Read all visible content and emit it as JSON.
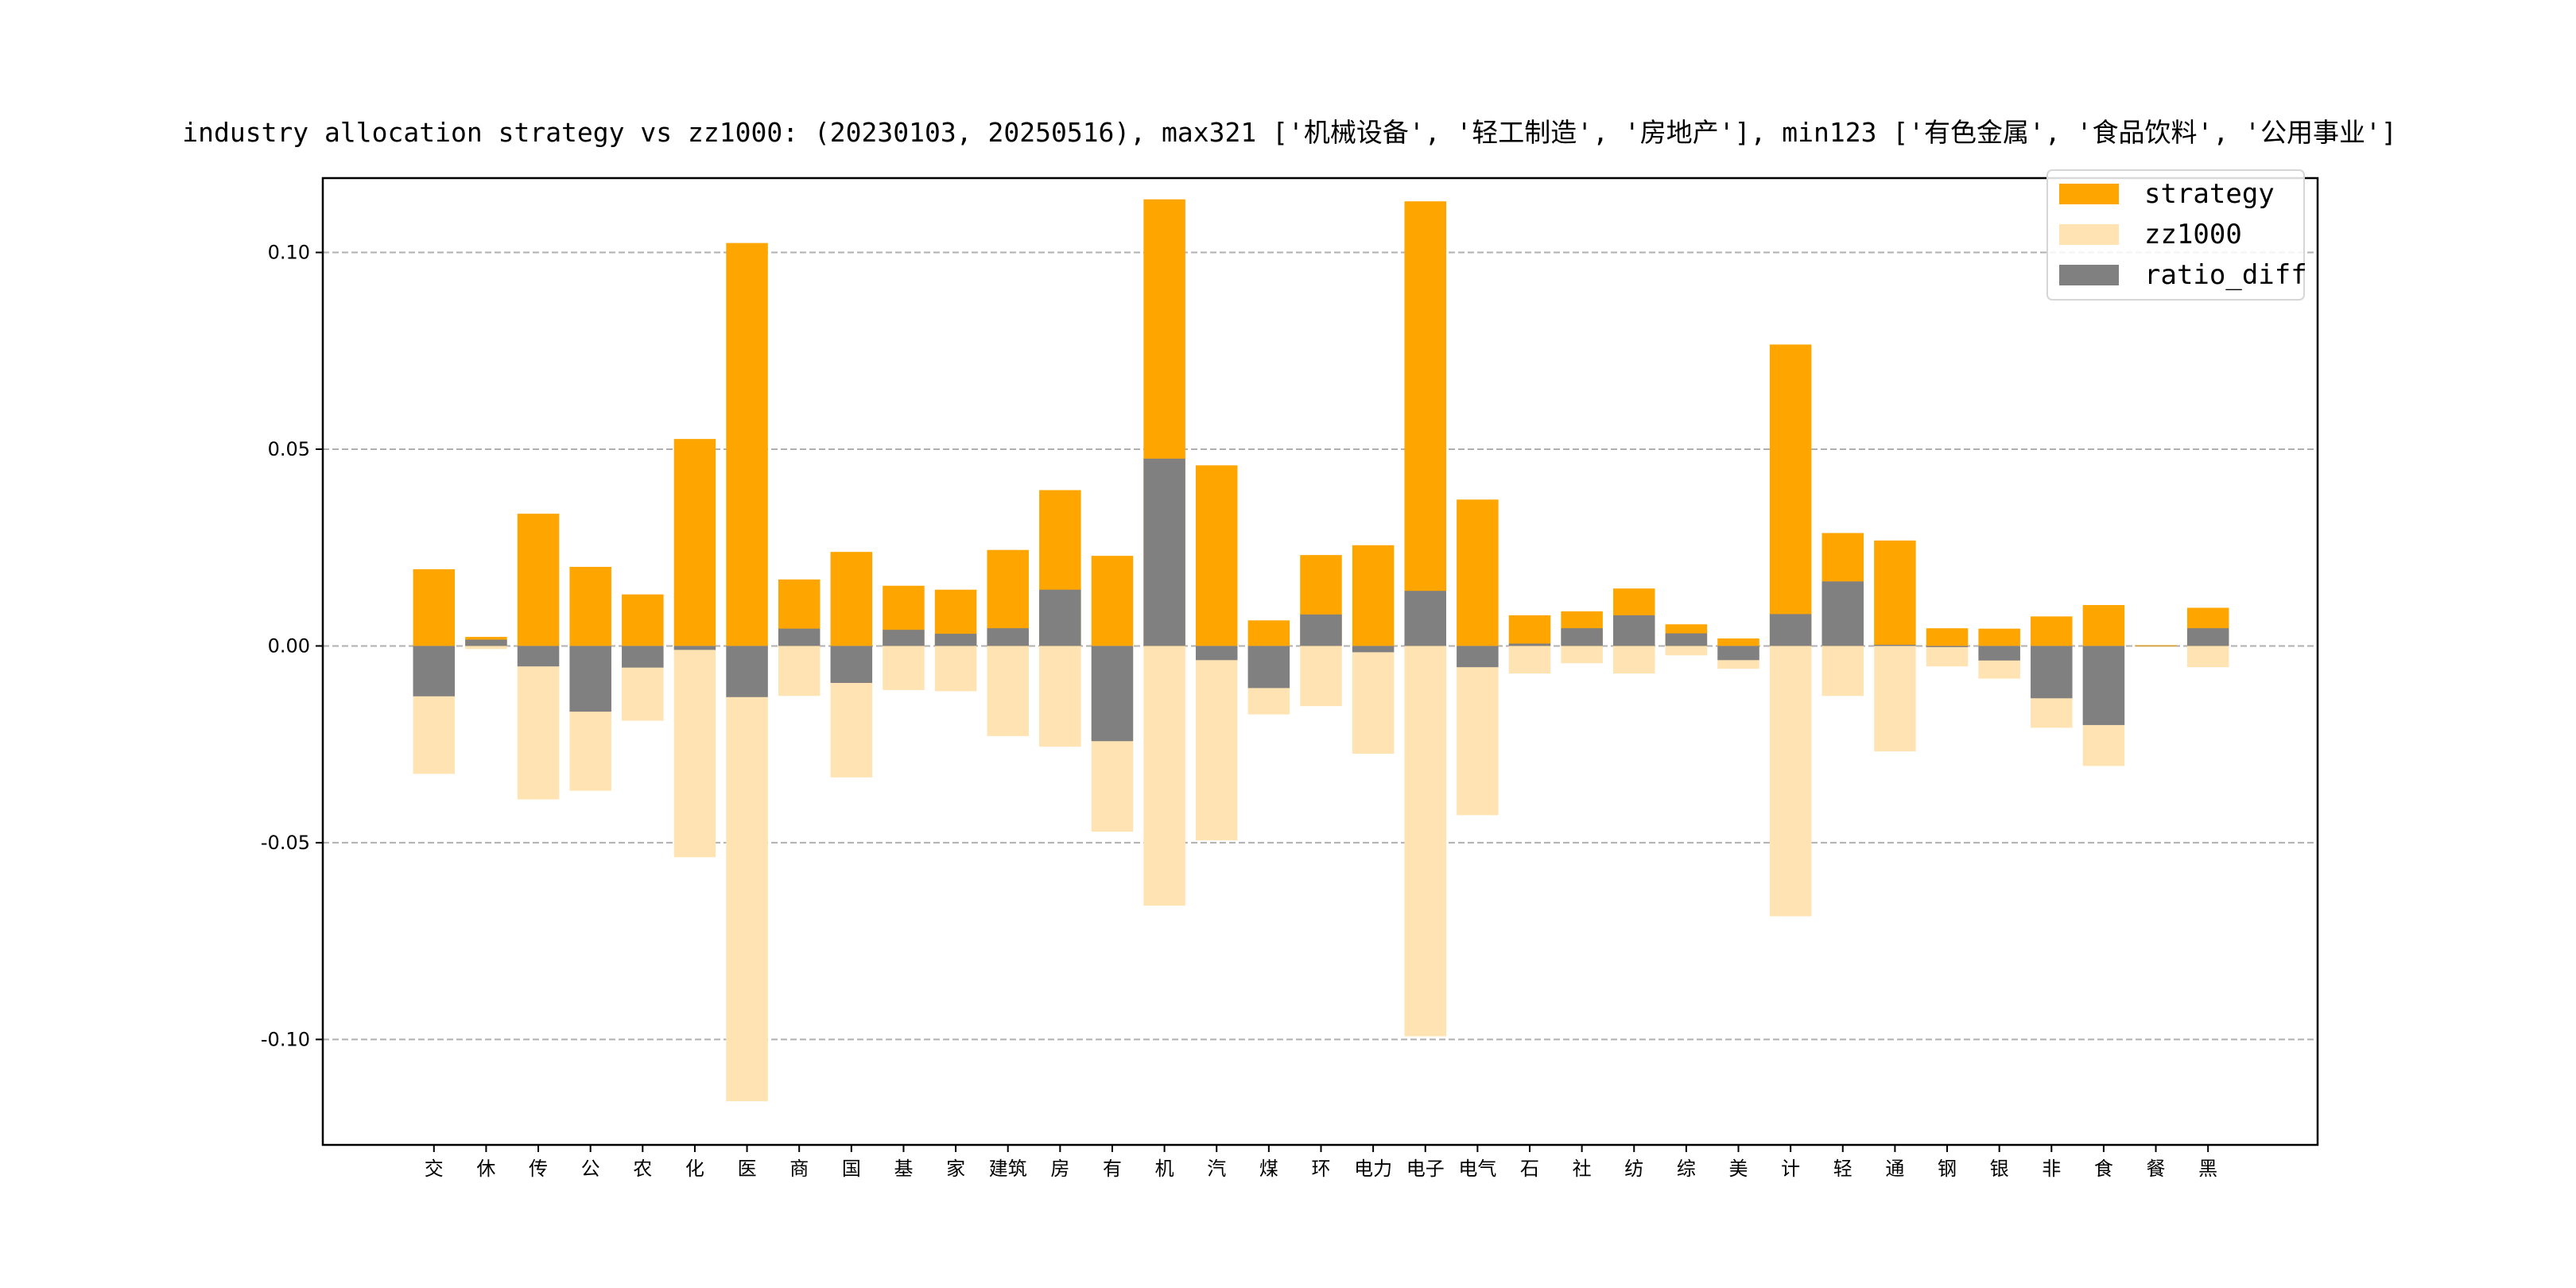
{
  "chart_data": {
    "type": "bar",
    "title": "industry allocation strategy vs zz1000: (20230103, 20250516), max321 ['机械设备', '轻工制造', '房地产'], min123 ['有色金属', '食品饮料', '公用事业']",
    "xlabel": "",
    "ylabel": "",
    "ylim": [
      -0.1268,
      0.1189
    ],
    "xlim": [
      -2.13,
      36.1
    ],
    "yticks": [
      -0.1,
      -0.05,
      0.0,
      0.05,
      0.1
    ],
    "ytick_labels": [
      "-0.10",
      "-0.05",
      "0.00",
      "0.05",
      "0.10"
    ],
    "grid": "y-dashed",
    "legend_position": "top-right",
    "categories": [
      "交",
      "休",
      "传",
      "公",
      "农",
      "化",
      "医",
      "商",
      "国",
      "基",
      "家",
      "建筑",
      "房",
      "有",
      "机",
      "汽",
      "煤",
      "环",
      "电力",
      "电子",
      "电气",
      "石",
      "社",
      "纺",
      "综",
      "美",
      "计",
      "轻",
      "通",
      "钢",
      "银",
      "非",
      "食",
      "餐",
      "黑"
    ],
    "series": [
      {
        "name": "strategy",
        "color": "#FFA500",
        "plotted_as": "positive",
        "values": [
          0.0195,
          0.0023,
          0.0336,
          0.0201,
          0.0131,
          0.0526,
          0.1024,
          0.0169,
          0.0239,
          0.0153,
          0.0143,
          0.0244,
          0.0396,
          0.0229,
          0.1135,
          0.0459,
          0.0065,
          0.0231,
          0.0256,
          0.113,
          0.0372,
          0.0078,
          0.0088,
          0.0146,
          0.0055,
          0.0019,
          0.0766,
          0.0287,
          0.0268,
          0.0045,
          0.0044,
          0.0075,
          0.0104,
          0.0002,
          0.0097
        ]
      },
      {
        "name": "zz1000",
        "color": "#FFE3B3",
        "plotted_as": "negative",
        "values": [
          0.0325,
          0.0008,
          0.039,
          0.0368,
          0.019,
          0.0537,
          0.1157,
          0.0127,
          0.0334,
          0.0112,
          0.0115,
          0.0229,
          0.0256,
          0.0472,
          0.066,
          0.0494,
          0.0174,
          0.0153,
          0.0274,
          0.0992,
          0.043,
          0.007,
          0.0044,
          0.007,
          0.0024,
          0.0058,
          0.0687,
          0.0127,
          0.0268,
          0.0052,
          0.0083,
          0.0208,
          0.0305,
          0.0003,
          0.0054
        ]
      },
      {
        "name": "ratio_diff",
        "color": "#808080",
        "plotted_as": "signed",
        "values": [
          -0.0128,
          0.0016,
          -0.0052,
          -0.0167,
          -0.0055,
          -0.001,
          -0.013,
          0.0044,
          -0.0094,
          0.0041,
          0.0031,
          0.0045,
          0.0143,
          -0.0242,
          0.0476,
          -0.0036,
          -0.0107,
          0.008,
          -0.0016,
          0.014,
          -0.0054,
          0.0006,
          0.0045,
          0.0078,
          0.0032,
          -0.0036,
          0.0081,
          0.0164,
          0.0003,
          -0.0003,
          -0.0037,
          -0.0133,
          -0.0201,
          0.0,
          0.0045
        ]
      }
    ]
  }
}
